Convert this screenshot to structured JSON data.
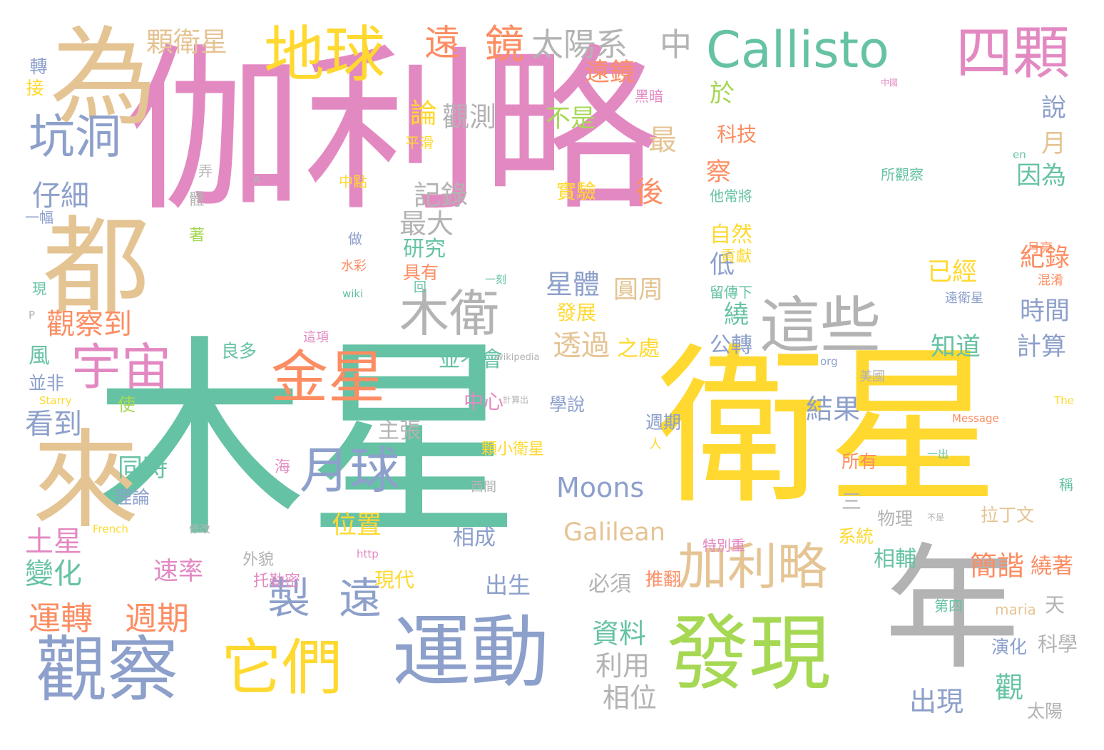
{
  "palette": {
    "pink": "#e389c2",
    "green": "#66c2a5",
    "yellow": "#ffd92f",
    "tan": "#e5c494",
    "blue": "#8da0cb",
    "orange": "#fc8d62",
    "lime": "#a6d854",
    "gray": "#b3b3b3"
  },
  "words": [
    {
      "text": "伽利略",
      "color": "pink"
    },
    {
      "text": "木星",
      "color": "green"
    },
    {
      "text": "衛星",
      "color": "yellow"
    },
    {
      "text": "年",
      "color": "gray"
    },
    {
      "text": "為",
      "color": "tan"
    },
    {
      "text": "都",
      "color": "tan"
    },
    {
      "text": "來",
      "color": "tan"
    },
    {
      "text": "地球",
      "color": "yellow"
    },
    {
      "text": "Callisto",
      "color": "green"
    },
    {
      "text": "四顆",
      "color": "pink"
    },
    {
      "text": "這些",
      "color": "gray"
    },
    {
      "text": "木衛",
      "color": "gray"
    },
    {
      "text": "金星",
      "color": "orange"
    },
    {
      "text": "宇宙",
      "color": "pink"
    },
    {
      "text": "加利略",
      "color": "tan"
    },
    {
      "text": "月球",
      "color": "blue"
    },
    {
      "text": "發現",
      "color": "lime"
    },
    {
      "text": "運動",
      "color": "blue"
    },
    {
      "text": "觀察",
      "color": "blue"
    },
    {
      "text": "它們",
      "color": "yellow"
    },
    {
      "text": "坑洞",
      "color": "blue"
    },
    {
      "text": "遠",
      "color": "orange"
    },
    {
      "text": "鏡",
      "color": "orange"
    },
    {
      "text": "太陽系",
      "color": "gray"
    },
    {
      "text": "中",
      "color": "gray"
    },
    {
      "text": "製",
      "color": "blue"
    },
    {
      "text": "遠",
      "color": "blue"
    },
    {
      "text": "Moons",
      "color": "blue"
    },
    {
      "text": "Galilean",
      "color": "tan"
    },
    {
      "text": "運轉",
      "color": "orange"
    },
    {
      "text": "週期",
      "color": "orange"
    },
    {
      "text": "觀察到",
      "color": "orange"
    },
    {
      "text": "顆衛星",
      "color": "tan"
    },
    {
      "text": "仔細",
      "color": "blue"
    },
    {
      "text": "遠鏡",
      "color": "orange"
    },
    {
      "text": "論",
      "color": "yellow"
    },
    {
      "text": "觀測",
      "color": "gray"
    },
    {
      "text": "不是",
      "color": "lime"
    },
    {
      "text": "於",
      "color": "lime"
    },
    {
      "text": "記錄",
      "color": "gray"
    },
    {
      "text": "最大",
      "color": "gray"
    },
    {
      "text": "最",
      "color": "tan"
    },
    {
      "text": "後",
      "color": "orange"
    },
    {
      "text": "察",
      "color": "orange"
    },
    {
      "text": "科技",
      "color": "orange"
    },
    {
      "text": "說",
      "color": "blue"
    },
    {
      "text": "月",
      "color": "tan"
    },
    {
      "text": "因為",
      "color": "green"
    },
    {
      "text": "已經",
      "color": "yellow"
    },
    {
      "text": "紀錄",
      "color": "orange"
    },
    {
      "text": "時間",
      "color": "blue"
    },
    {
      "text": "計算",
      "color": "blue"
    },
    {
      "text": "知道",
      "color": "green"
    },
    {
      "text": "結果",
      "color": "blue"
    },
    {
      "text": "星體",
      "color": "blue"
    },
    {
      "text": "圓周",
      "color": "tan"
    },
    {
      "text": "透過",
      "color": "tan"
    },
    {
      "text": "之處",
      "color": "yellow"
    },
    {
      "text": "繞",
      "color": "green"
    },
    {
      "text": "低",
      "color": "blue"
    },
    {
      "text": "自然",
      "color": "yellow"
    },
    {
      "text": "貢獻",
      "color": "yellow"
    },
    {
      "text": "研究",
      "color": "green"
    },
    {
      "text": "實驗",
      "color": "yellow"
    },
    {
      "text": "發展",
      "color": "yellow"
    },
    {
      "text": "具有",
      "color": "orange"
    },
    {
      "text": "公轉",
      "color": "blue"
    },
    {
      "text": "並不會",
      "color": "green"
    },
    {
      "text": "良多",
      "color": "green"
    },
    {
      "text": "同時",
      "color": "green"
    },
    {
      "text": "理論",
      "color": "blue"
    },
    {
      "text": "位置",
      "color": "yellow"
    },
    {
      "text": "看到",
      "color": "blue"
    },
    {
      "text": "土星",
      "color": "pink"
    },
    {
      "text": "變化",
      "color": "green"
    },
    {
      "text": "速率",
      "color": "pink"
    },
    {
      "text": "風",
      "color": "green"
    },
    {
      "text": "並非",
      "color": "blue"
    },
    {
      "text": "使",
      "color": "lime"
    },
    {
      "text": "主張",
      "color": "gray"
    },
    {
      "text": "中心",
      "color": "pink"
    },
    {
      "text": "學說",
      "color": "blue"
    },
    {
      "text": "週期",
      "color": "blue"
    },
    {
      "text": "所有",
      "color": "orange"
    },
    {
      "text": "三",
      "color": "gray"
    },
    {
      "text": "物理",
      "color": "gray"
    },
    {
      "text": "拉丁文",
      "color": "tan"
    },
    {
      "text": "系統",
      "color": "yellow"
    },
    {
      "text": "相輔",
      "color": "green"
    },
    {
      "text": "簡諧",
      "color": "orange"
    },
    {
      "text": "繞著",
      "color": "orange"
    },
    {
      "text": "相成",
      "color": "blue"
    },
    {
      "text": "現代",
      "color": "yellow"
    },
    {
      "text": "出生",
      "color": "blue"
    },
    {
      "text": "必須",
      "color": "gray"
    },
    {
      "text": "推翻",
      "color": "orange"
    },
    {
      "text": "資料",
      "color": "green"
    },
    {
      "text": "利用",
      "color": "gray"
    },
    {
      "text": "相位",
      "color": "gray"
    },
    {
      "text": "出現",
      "color": "blue"
    },
    {
      "text": "觀",
      "color": "green"
    },
    {
      "text": "太陽",
      "color": "gray"
    },
    {
      "text": "天",
      "color": "gray"
    },
    {
      "text": "科學",
      "color": "gray"
    },
    {
      "text": "演化",
      "color": "blue"
    },
    {
      "text": "第四",
      "color": "green"
    },
    {
      "text": "maria",
      "color": "tan"
    },
    {
      "text": "轉",
      "color": "blue"
    },
    {
      "text": "接",
      "color": "yellow"
    },
    {
      "text": "一幅",
      "color": "blue"
    },
    {
      "text": "現",
      "color": "green"
    },
    {
      "text": "平滑",
      "color": "yellow"
    },
    {
      "text": "中點",
      "color": "yellow"
    },
    {
      "text": "黑暗",
      "color": "pink"
    },
    {
      "text": "他常將",
      "color": "green"
    },
    {
      "text": "留傳下",
      "color": "green"
    },
    {
      "text": "所觀察",
      "color": "green"
    },
    {
      "text": "月亮",
      "color": "orange"
    },
    {
      "text": "混淆",
      "color": "orange"
    },
    {
      "text": "遠衛星",
      "color": "blue"
    },
    {
      "text": "顆小衛星",
      "color": "yellow"
    },
    {
      "text": "Message",
      "color": "orange"
    },
    {
      "text": "稱",
      "color": "green"
    },
    {
      "text": "弄",
      "color": "gray"
    },
    {
      "text": "體",
      "color": "gray"
    },
    {
      "text": "著",
      "color": "lime"
    },
    {
      "text": "做",
      "color": "blue"
    },
    {
      "text": "水彩",
      "color": "orange"
    },
    {
      "text": "wiki",
      "color": "green"
    },
    {
      "text": "回",
      "color": "green"
    },
    {
      "text": "一刻",
      "color": "green"
    },
    {
      "text": "海",
      "color": "pink"
    },
    {
      "text": "外貌",
      "color": "gray"
    },
    {
      "text": "托勒密",
      "color": "pink"
    },
    {
      "text": "http",
      "color": "pink"
    },
    {
      "text": "French",
      "color": "yellow"
    },
    {
      "text": "修改",
      "color": "gray"
    },
    {
      "text": "特別重",
      "color": "pink"
    },
    {
      "text": "西間",
      "color": "gray"
    },
    {
      "text": "這項",
      "color": "pink"
    },
    {
      "text": "美國",
      "color": "gray"
    },
    {
      "text": "Starry",
      "color": "yellow"
    },
    {
      "text": "wikipedia",
      "color": "gray"
    },
    {
      "text": "org",
      "color": "blue"
    },
    {
      "text": "en",
      "color": "green"
    },
    {
      "text": "中國",
      "color": "pink"
    },
    {
      "text": "The",
      "color": "yellow"
    },
    {
      "text": "P",
      "color": "gray"
    },
    {
      "text": "A",
      "color": "gray"
    },
    {
      "text": "計算出",
      "color": "gray"
    },
    {
      "text": "人",
      "color": "yellow"
    },
    {
      "text": "一出",
      "color": "green"
    },
    {
      "text": "不是",
      "color": "gray"
    }
  ]
}
